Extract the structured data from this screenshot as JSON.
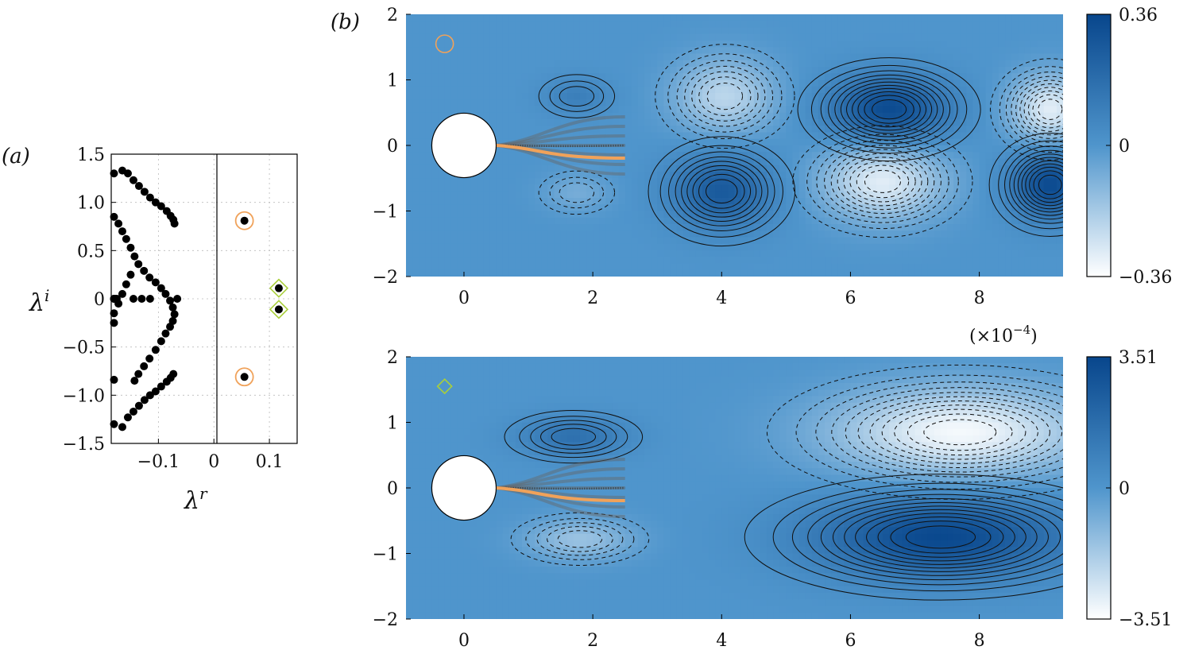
{
  "panel_labels": {
    "a": "(a)",
    "b": "(b)"
  },
  "colors": {
    "accent_orange": "#f0a25a",
    "accent_green": "#a9cf3a",
    "cmap_dark": "#08468c",
    "cmap_mid": "#4f95cc",
    "cmap_light": "#ffffff",
    "points": "#000000"
  },
  "chart_data": [
    {
      "type": "scatter",
      "panel": "(a)",
      "xlabel": "λ^r",
      "ylabel": "λ^i",
      "xlabel_base": "λ",
      "xlabel_sup": "r",
      "ylabel_base": "λ",
      "ylabel_sup": "i",
      "xlim": [
        -0.185,
        0.15
      ],
      "ylim": [
        -1.5,
        1.5
      ],
      "xticks": [
        -0.1,
        0,
        0.1
      ],
      "xtick_labels": [
        "−0.1",
        "0",
        "0.1"
      ],
      "yticks": [
        1.5,
        1.0,
        0.5,
        0,
        -0.5,
        -1.0,
        -1.5
      ],
      "ytick_labels": [
        "1.5",
        "1.0",
        "0.5",
        "0",
        "−0.5",
        "−1.0",
        "−1.5"
      ],
      "grid": true,
      "vertical_line_at": 0,
      "x": [
        -0.165,
        -0.155,
        -0.145,
        -0.135,
        -0.125,
        -0.115,
        -0.105,
        -0.095,
        -0.085,
        -0.078,
        -0.073,
        -0.071,
        -0.073,
        -0.078,
        -0.085,
        -0.095,
        -0.105,
        -0.115,
        -0.125,
        -0.135,
        -0.145,
        -0.155,
        -0.165,
        -0.18,
        -0.18,
        -0.172,
        -0.165,
        -0.158,
        -0.15,
        -0.143,
        -0.136,
        -0.126,
        -0.116,
        -0.105,
        -0.095,
        -0.087,
        -0.079,
        -0.074,
        -0.071,
        -0.074,
        -0.079,
        -0.087,
        -0.095,
        -0.105,
        -0.116,
        -0.126,
        -0.136,
        -0.143,
        -0.15,
        -0.158,
        -0.165,
        -0.172,
        -0.18,
        -0.18,
        -0.18,
        -0.18,
        -0.178,
        -0.175,
        -0.178,
        -0.18,
        -0.18,
        -0.18,
        -0.145,
        -0.13,
        -0.115,
        -0.066,
        0.055,
        0.055,
        0.117,
        0.117
      ],
      "y": [
        1.33,
        1.3,
        1.23,
        1.17,
        1.11,
        1.05,
        1.0,
        0.96,
        0.91,
        0.86,
        0.82,
        0.78,
        -0.78,
        -0.82,
        -0.86,
        -0.91,
        -0.96,
        -1.0,
        -1.05,
        -1.11,
        -1.17,
        -1.23,
        -1.33,
        1.3,
        0.85,
        0.78,
        0.7,
        0.62,
        0.53,
        0.44,
        0.36,
        0.29,
        0.22,
        0.17,
        0.11,
        0.05,
        -0.02,
        -0.09,
        -0.16,
        -0.23,
        -0.29,
        -0.36,
        -0.44,
        -0.53,
        -0.62,
        -0.7,
        -0.78,
        -0.85,
        0.25,
        0.15,
        0.05,
        -0.05,
        -0.15,
        -0.25,
        -0.84,
        -1.3,
        0.0,
        0.0,
        0.0,
        0.0,
        0.0,
        0.0,
        0.0,
        0.0,
        0.0,
        0.0,
        0.81,
        -0.81,
        0.11,
        -0.11
      ],
      "markers": [
        {
          "shape": "circle",
          "color": "#f0a25a",
          "points": [
            [
              0.055,
              0.81
            ],
            [
              0.055,
              -0.81
            ]
          ]
        },
        {
          "shape": "diamond",
          "color": "#a9cf3a",
          "points": [
            [
              0.117,
              0.11
            ],
            [
              0.117,
              -0.11
            ]
          ]
        }
      ]
    },
    {
      "type": "heatmap",
      "panel": "(b) top",
      "marker": "circle",
      "marker_color": "#f0a25a",
      "xlim": [
        -0.9,
        9.3
      ],
      "ylim": [
        -2,
        2
      ],
      "xticks": [
        0,
        2,
        4,
        6,
        8
      ],
      "xtick_labels": [
        "0",
        "2",
        "4",
        "6",
        "8"
      ],
      "yticks": [
        2,
        1,
        0,
        -1,
        -2
      ],
      "ytick_labels": [
        "2",
        "1",
        "0",
        "−1",
        "−2"
      ],
      "colorbar_ticks": [
        0.36,
        0,
        -0.36
      ],
      "colorbar_labels": [
        "0.36",
        "0",
        "−0.36"
      ],
      "cylinder": {
        "center_x": 0,
        "center_y": 0,
        "radius": 0.5
      },
      "blobs": [
        {
          "cx": 1.75,
          "cy": 0.75,
          "amp": 0.1,
          "sx": 0.5,
          "sy": 0.28
        },
        {
          "cx": 1.75,
          "cy": -0.72,
          "amp": -0.08,
          "sx": 0.5,
          "sy": 0.28
        },
        {
          "cx": 4.05,
          "cy": 0.75,
          "amp": -0.22,
          "sx": 0.75,
          "sy": 0.55
        },
        {
          "cx": 4.0,
          "cy": -0.7,
          "amp": 0.27,
          "sx": 0.75,
          "sy": 0.55
        },
        {
          "cx": 6.6,
          "cy": 0.55,
          "amp": 0.34,
          "sx": 0.9,
          "sy": 0.5
        },
        {
          "cx": 6.5,
          "cy": -0.55,
          "amp": -0.3,
          "sx": 0.9,
          "sy": 0.55
        },
        {
          "cx": 9.1,
          "cy": 0.55,
          "amp": -0.3,
          "sx": 0.6,
          "sy": 0.5
        },
        {
          "cx": 9.1,
          "cy": -0.6,
          "amp": 0.34,
          "sx": 0.6,
          "sy": 0.5
        }
      ],
      "colorbar_multiplier": "(×10−4)",
      "colorbar_multiplier_base": "(×10",
      "colorbar_multiplier_exp": "−4",
      "colorbar_multiplier_close": ")"
    },
    {
      "type": "heatmap",
      "panel": "(b) bottom",
      "marker": "diamond",
      "marker_color": "#a9cf3a",
      "xlim": [
        -0.9,
        9.3
      ],
      "ylim": [
        -2,
        2
      ],
      "xticks": [
        0,
        2,
        4,
        6,
        8
      ],
      "xtick_labels": [
        "0",
        "2",
        "4",
        "6",
        "8"
      ],
      "yticks": [
        2,
        1,
        0,
        -1,
        -2
      ],
      "ytick_labels": [
        "2",
        "1",
        "0",
        "−1",
        "−2"
      ],
      "colorbar_ticks": [
        3.51,
        0,
        -3.51
      ],
      "colorbar_labels": [
        "3.51",
        "0",
        "−3.51"
      ],
      "cylinder": {
        "center_x": 0,
        "center_y": 0,
        "radius": 0.5
      },
      "blobs": [
        {
          "cx": 1.7,
          "cy": 0.78,
          "amp": 1.6,
          "sx": 0.8,
          "sy": 0.3
        },
        {
          "cx": 1.8,
          "cy": -0.78,
          "amp": -1.5,
          "sx": 0.8,
          "sy": 0.3
        },
        {
          "cx": 7.7,
          "cy": 0.85,
          "amp": -3.3,
          "sx": 1.9,
          "sy": 0.65
        },
        {
          "cx": 7.4,
          "cy": -0.75,
          "amp": 3.4,
          "sx": 1.9,
          "sy": 0.6
        }
      ]
    }
  ]
}
